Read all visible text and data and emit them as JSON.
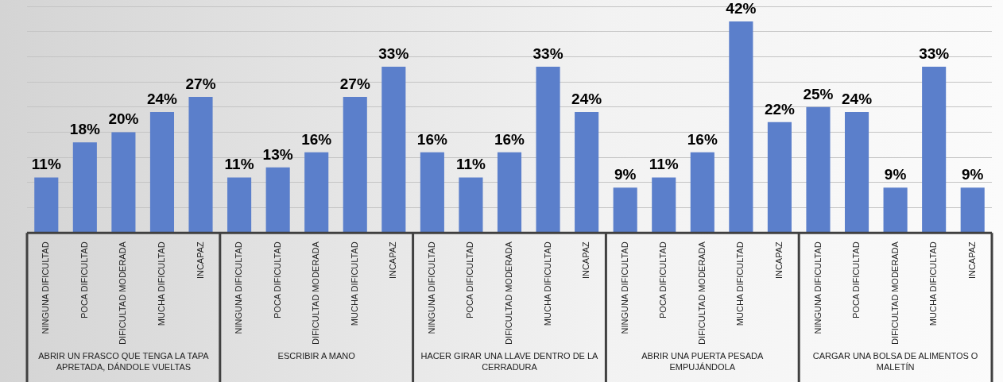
{
  "chart_data": {
    "type": "bar",
    "categories": [
      "NINGUNA DIFICULTAD",
      "POCA DIFICULTAD",
      "DIFICULTAD MODERADA",
      "MUCHA DIFICULTAD",
      "INCAPAZ",
      "NINGUNA DIFICULTAD",
      "POCA DIFICULTAD",
      "DIFICULTAD MODERADA",
      "MUCHA DIFICULTAD",
      "INCAPAZ",
      "NINGUNA DIFICULTAD",
      "POCA DIFICULTAD",
      "DIFICULTAD MODERADA",
      "MUCHA DIFICULTAD",
      "INCAPAZ",
      "NINGUNA DIFICULTAD",
      "POCA DIFICULTAD",
      "DIFICULTAD MODERADA",
      "MUCHA DIFICULTAD",
      "INCAPAZ",
      "NINGUNA DIFICULTAD",
      "POCA DIFICULTAD",
      "DIFICULTAD MODERADA",
      "MUCHA DIFICULTAD",
      "INCAPAZ"
    ],
    "series": [
      {
        "color": "#5b7fcb",
        "values": [
          11,
          18,
          20,
          24,
          27,
          11,
          13,
          16,
          27,
          33,
          16,
          11,
          16,
          33,
          24,
          9,
          11,
          16,
          42,
          22,
          25,
          24,
          9,
          33,
          9
        ],
        "value_labels": [
          "11%",
          "18%",
          "20%",
          "24%",
          "27%",
          "11%",
          "13%",
          "16%",
          "27%",
          "33%",
          "16%",
          "11%",
          "16%",
          "33%",
          "24%",
          "9%",
          "11%",
          "16%",
          "42%",
          "22%",
          "25%",
          "24%",
          "9%",
          "33%",
          "9%"
        ]
      }
    ],
    "annotations": [
      "ABRIR UN FRASCO QUE TENGA LA TAPA APRETADA, DÁNDOLE VUELTAS",
      "ESCRIBIR A MANO",
      "HACER GIRAR UNA LLAVE DENTRO DE LA CERRADURA",
      "ABRIR UNA PUERTA PESADA EMPUJÁNDOLA",
      "CARGAR UNA BOLSA DE ALIMENTOS O MALETÍN"
    ],
    "grid": "y",
    "legend": false,
    "tick_labels": "x"
  }
}
